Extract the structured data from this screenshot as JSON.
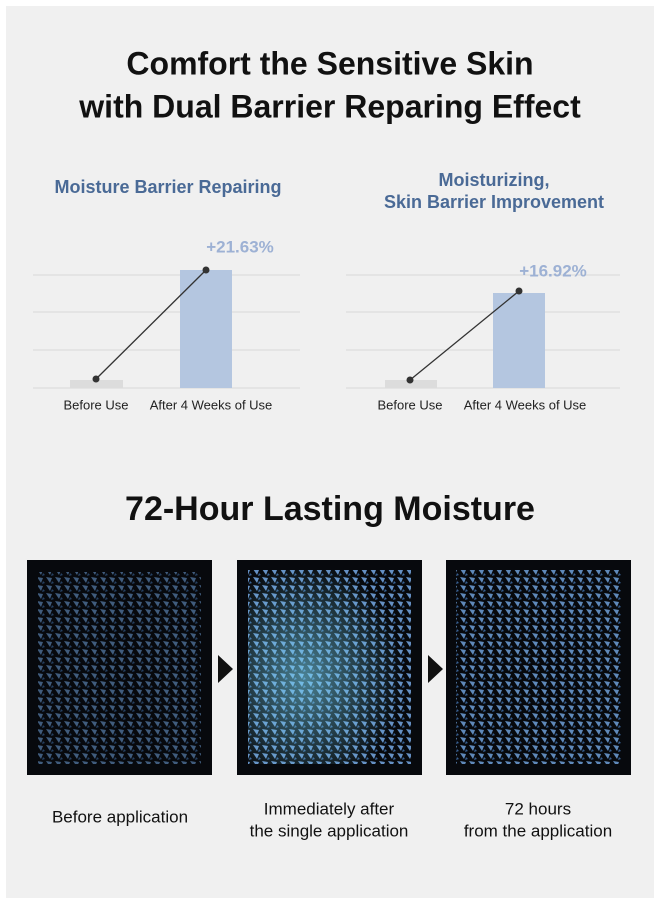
{
  "header": {
    "title_lines": [
      "Comfort the Sensitive Skin",
      "with Dual Barrier Reparing Effect"
    ]
  },
  "charts": [
    {
      "title_lines": [
        "Moisture Barrier Repairing"
      ],
      "change": "+21.63%",
      "categories": [
        "Before Use",
        "After 4 Weeks of Use"
      ]
    },
    {
      "title_lines": [
        "Moisturizing,",
        "Skin Barrier Improvement"
      ],
      "change": "+16.92%",
      "categories": [
        "Before Use",
        "After 4 Weeks of Use"
      ]
    }
  ],
  "section": {
    "title": "72-Hour Lasting Moisture",
    "panels": [
      {
        "caption_lines": [
          "Before application"
        ]
      },
      {
        "caption_lines": [
          "Immediately after",
          "the single application"
        ]
      },
      {
        "caption_lines": [
          "72 hours",
          "from the application"
        ]
      }
    ]
  }
}
